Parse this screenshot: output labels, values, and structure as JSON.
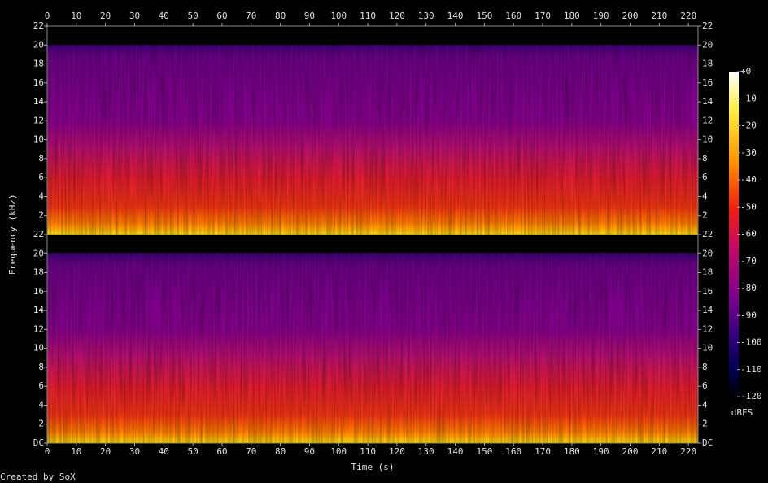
{
  "chart_data": {
    "type": "spectrogram",
    "x_label": "Time (s)",
    "y_label": "Frequency (kHz)",
    "xlim": [
      0,
      223.3
    ],
    "xticks": [
      0,
      10,
      20,
      30,
      40,
      50,
      60,
      70,
      80,
      90,
      100,
      110,
      120,
      130,
      140,
      150,
      160,
      170,
      180,
      190,
      200,
      210,
      220
    ],
    "channels": [
      {
        "ylim": [
          0,
          22
        ],
        "yticks": [
          2,
          4,
          6,
          8,
          10,
          12,
          14,
          16,
          18,
          20,
          22
        ]
      },
      {
        "ylim": [
          0,
          22
        ],
        "yticks": [
          {
            "value": 0,
            "label": "DC"
          },
          2,
          4,
          6,
          8,
          10,
          12,
          14,
          16,
          18,
          20,
          22
        ]
      }
    ],
    "colorbar": {
      "label": "dBFS",
      "lim": [
        -120,
        0
      ],
      "ticks": [
        {
          "value": 0,
          "label": "+0"
        },
        -10,
        -20,
        -30,
        -40,
        -50,
        -60,
        -70,
        -80,
        -90,
        -100,
        -110,
        -120
      ]
    },
    "footer": "Created by SoX"
  }
}
